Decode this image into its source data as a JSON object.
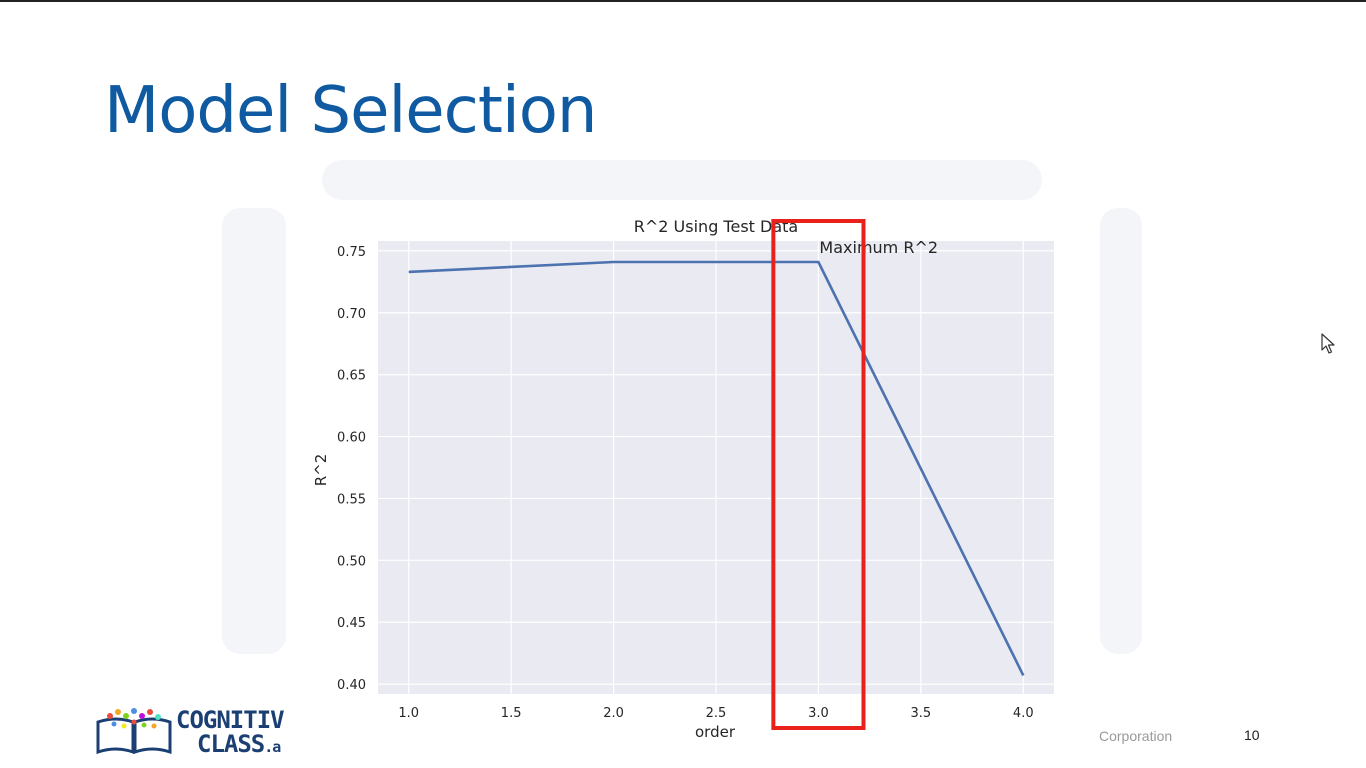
{
  "slide": {
    "title": "Model Selection",
    "footer_org": "Corporation",
    "page_number": "10"
  },
  "logo": {
    "line1": "COGNITIV",
    "line2": "CLASS",
    "line2_suffix": ".a"
  },
  "colors": {
    "title": "#0f5aa0",
    "plot_bg": "#eaeaf2",
    "grid": "#ffffff",
    "line": "#4c72b0",
    "highlight": "#e8211a"
  },
  "chart_data": {
    "type": "line",
    "title": "R^2 Using Test Data",
    "xlabel": "order",
    "ylabel": "R^2",
    "xlim": [
      0.85,
      4.15
    ],
    "ylim": [
      0.392,
      0.758
    ],
    "x_ticks": [
      1.0,
      1.5,
      2.0,
      2.5,
      3.0,
      3.5,
      4.0
    ],
    "x_tick_labels": [
      "1.0",
      "1.5",
      "2.0",
      "2.5",
      "3.0",
      "3.5",
      "4.0"
    ],
    "y_ticks": [
      0.4,
      0.45,
      0.5,
      0.55,
      0.6,
      0.65,
      0.7,
      0.75
    ],
    "y_tick_labels": [
      "0.40",
      "0.45",
      "0.50",
      "0.55",
      "0.60",
      "0.65",
      "0.70",
      "0.75"
    ],
    "grid": true,
    "series": [
      {
        "x": [
          1,
          2,
          3,
          4
        ],
        "y": [
          0.733,
          0.741,
          0.741,
          0.407
        ]
      }
    ],
    "annotation": {
      "text": "Maximum R^2",
      "x": 3.0,
      "y": 0.75,
      "highlight_x_range": [
        2.78,
        3.22
      ]
    }
  }
}
